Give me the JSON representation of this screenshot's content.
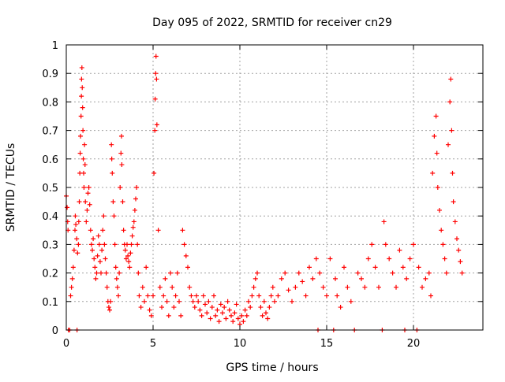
{
  "chart_data": {
    "type": "scatter",
    "title": "Day 095 of 2022, SRMTID for receiver cn29",
    "xlabel": "GPS time / hours",
    "ylabel": "SRMTID / TECUs",
    "xlim": [
      0,
      24
    ],
    "ylim": [
      0,
      1
    ],
    "x_ticks": [
      0,
      5,
      10,
      15,
      20
    ],
    "x_tick_labels": [
      "0",
      "5",
      "10",
      "15",
      "20"
    ],
    "y_ticks": [
      0,
      0.1,
      0.2,
      0.3,
      0.4,
      0.5,
      0.6,
      0.7,
      0.8,
      0.9,
      1
    ],
    "y_tick_labels": [
      "0",
      "0.1",
      "0.2",
      "0.3",
      "0.4",
      "0.5",
      "0.6",
      "0.7",
      "0.8",
      "0.9",
      "1"
    ],
    "grid": true,
    "marker": "+",
    "color": "#ff0000",
    "series": [
      {
        "name": "SRMTID",
        "points": [
          [
            0.0,
            0.47
          ],
          [
            0.05,
            0.43
          ],
          [
            0.08,
            0.38
          ],
          [
            0.1,
            0.35
          ],
          [
            0.12,
            0.0
          ],
          [
            0.2,
            0.0
          ],
          [
            0.25,
            0.12
          ],
          [
            0.3,
            0.15
          ],
          [
            0.35,
            0.18
          ],
          [
            0.4,
            0.22
          ],
          [
            0.45,
            0.28
          ],
          [
            0.5,
            0.35
          ],
          [
            0.52,
            0.4
          ],
          [
            0.55,
            0.37
          ],
          [
            0.6,
            0.32
          ],
          [
            0.62,
            0.0
          ],
          [
            0.65,
            0.27
          ],
          [
            0.7,
            0.3
          ],
          [
            0.72,
            0.38
          ],
          [
            0.75,
            0.45
          ],
          [
            0.78,
            0.55
          ],
          [
            0.8,
            0.62
          ],
          [
            0.82,
            0.68
          ],
          [
            0.85,
            0.75
          ],
          [
            0.87,
            0.82
          ],
          [
            0.88,
            0.88
          ],
          [
            0.9,
            0.92
          ],
          [
            0.92,
            0.85
          ],
          [
            0.94,
            0.78
          ],
          [
            0.96,
            0.7
          ],
          [
            0.98,
            0.6
          ],
          [
            1.0,
            0.55
          ],
          [
            1.02,
            0.5
          ],
          [
            1.05,
            0.65
          ],
          [
            1.08,
            0.58
          ],
          [
            1.1,
            0.45
          ],
          [
            1.15,
            0.38
          ],
          [
            1.2,
            0.42
          ],
          [
            1.25,
            0.48
          ],
          [
            1.3,
            0.5
          ],
          [
            1.35,
            0.44
          ],
          [
            1.4,
            0.35
          ],
          [
            1.45,
            0.3
          ],
          [
            1.5,
            0.28
          ],
          [
            1.55,
            0.32
          ],
          [
            1.6,
            0.25
          ],
          [
            1.65,
            0.22
          ],
          [
            1.7,
            0.18
          ],
          [
            1.75,
            0.2
          ],
          [
            1.8,
            0.26
          ],
          [
            1.85,
            0.33
          ],
          [
            1.9,
            0.3
          ],
          [
            1.95,
            0.24
          ],
          [
            2.0,
            0.2
          ],
          [
            2.05,
            0.28
          ],
          [
            2.1,
            0.35
          ],
          [
            2.15,
            0.4
          ],
          [
            2.2,
            0.3
          ],
          [
            2.25,
            0.25
          ],
          [
            2.3,
            0.2
          ],
          [
            2.35,
            0.15
          ],
          [
            2.4,
            0.1
          ],
          [
            2.45,
            0.08
          ],
          [
            2.5,
            0.07
          ],
          [
            2.55,
            0.1
          ],
          [
            2.6,
            0.65
          ],
          [
            2.62,
            0.6
          ],
          [
            2.65,
            0.55
          ],
          [
            2.7,
            0.45
          ],
          [
            2.75,
            0.4
          ],
          [
            2.8,
            0.3
          ],
          [
            2.85,
            0.22
          ],
          [
            2.9,
            0.18
          ],
          [
            2.95,
            0.15
          ],
          [
            3.0,
            0.12
          ],
          [
            3.05,
            0.2
          ],
          [
            3.1,
            0.5
          ],
          [
            3.15,
            0.62
          ],
          [
            3.18,
            0.68
          ],
          [
            3.2,
            0.58
          ],
          [
            3.25,
            0.45
          ],
          [
            3.3,
            0.35
          ],
          [
            3.35,
            0.3
          ],
          [
            3.4,
            0.28
          ],
          [
            3.45,
            0.25
          ],
          [
            3.5,
            0.3
          ],
          [
            3.55,
            0.26
          ],
          [
            3.6,
            0.24
          ],
          [
            3.65,
            0.22
          ],
          [
            3.7,
            0.27
          ],
          [
            3.75,
            0.3
          ],
          [
            3.8,
            0.33
          ],
          [
            3.85,
            0.36
          ],
          [
            3.9,
            0.38
          ],
          [
            3.95,
            0.42
          ],
          [
            4.0,
            0.46
          ],
          [
            4.05,
            0.5
          ],
          [
            4.1,
            0.3
          ],
          [
            4.15,
            0.2
          ],
          [
            4.2,
            0.12
          ],
          [
            4.3,
            0.08
          ],
          [
            4.4,
            0.15
          ],
          [
            4.5,
            0.1
          ],
          [
            4.6,
            0.22
          ],
          [
            4.7,
            0.12
          ],
          [
            4.8,
            0.07
          ],
          [
            4.9,
            0.05
          ],
          [
            5.0,
            0.12
          ],
          [
            5.05,
            0.55
          ],
          [
            5.1,
            0.7
          ],
          [
            5.12,
            0.81
          ],
          [
            5.15,
            0.9
          ],
          [
            5.17,
            0.96
          ],
          [
            5.2,
            0.88
          ],
          [
            5.22,
            0.72
          ],
          [
            5.3,
            0.35
          ],
          [
            5.4,
            0.15
          ],
          [
            5.5,
            0.08
          ],
          [
            5.6,
            0.12
          ],
          [
            5.7,
            0.18
          ],
          [
            5.8,
            0.1
          ],
          [
            5.9,
            0.05
          ],
          [
            6.0,
            0.2
          ],
          [
            6.1,
            0.15
          ],
          [
            6.2,
            0.08
          ],
          [
            6.3,
            0.12
          ],
          [
            6.4,
            0.2
          ],
          [
            6.5,
            0.1
          ],
          [
            6.6,
            0.05
          ],
          [
            6.7,
            0.35
          ],
          [
            6.8,
            0.3
          ],
          [
            6.9,
            0.26
          ],
          [
            7.0,
            0.22
          ],
          [
            7.1,
            0.15
          ],
          [
            7.2,
            0.12
          ],
          [
            7.3,
            0.1
          ],
          [
            7.4,
            0.08
          ],
          [
            7.5,
            0.12
          ],
          [
            7.6,
            0.1
          ],
          [
            7.7,
            0.07
          ],
          [
            7.8,
            0.05
          ],
          [
            7.9,
            0.12
          ],
          [
            8.0,
            0.09
          ],
          [
            8.1,
            0.06
          ],
          [
            8.2,
            0.1
          ],
          [
            8.3,
            0.04
          ],
          [
            8.4,
            0.08
          ],
          [
            8.5,
            0.12
          ],
          [
            8.6,
            0.05
          ],
          [
            8.7,
            0.07
          ],
          [
            8.8,
            0.03
          ],
          [
            8.9,
            0.09
          ],
          [
            9.0,
            0.06
          ],
          [
            9.1,
            0.08
          ],
          [
            9.2,
            0.04
          ],
          [
            9.3,
            0.1
          ],
          [
            9.4,
            0.07
          ],
          [
            9.5,
            0.05
          ],
          [
            9.6,
            0.03
          ],
          [
            9.7,
            0.06
          ],
          [
            9.8,
            0.09
          ],
          [
            9.9,
            0.04
          ],
          [
            10.0,
            0.02
          ],
          [
            10.1,
            0.05
          ],
          [
            10.2,
            0.03
          ],
          [
            10.3,
            0.07
          ],
          [
            10.4,
            0.05
          ],
          [
            10.5,
            0.1
          ],
          [
            10.6,
            0.08
          ],
          [
            10.7,
            0.12
          ],
          [
            10.8,
            0.15
          ],
          [
            10.9,
            0.18
          ],
          [
            11.0,
            0.2
          ],
          [
            11.1,
            0.12
          ],
          [
            11.2,
            0.08
          ],
          [
            11.3,
            0.05
          ],
          [
            11.4,
            0.1
          ],
          [
            11.5,
            0.06
          ],
          [
            11.6,
            0.04
          ],
          [
            11.7,
            0.08
          ],
          [
            11.8,
            0.12
          ],
          [
            11.9,
            0.15
          ],
          [
            12.0,
            0.1
          ],
          [
            12.2,
            0.12
          ],
          [
            12.4,
            0.18
          ],
          [
            12.6,
            0.2
          ],
          [
            12.8,
            0.14
          ],
          [
            13.0,
            0.1
          ],
          [
            13.2,
            0.15
          ],
          [
            13.4,
            0.2
          ],
          [
            13.6,
            0.17
          ],
          [
            13.8,
            0.12
          ],
          [
            14.0,
            0.22
          ],
          [
            14.2,
            0.18
          ],
          [
            14.4,
            0.25
          ],
          [
            14.5,
            0.0
          ],
          [
            14.6,
            0.2
          ],
          [
            14.8,
            0.15
          ],
          [
            15.0,
            0.12
          ],
          [
            15.2,
            0.25
          ],
          [
            15.4,
            0.0
          ],
          [
            15.5,
            0.18
          ],
          [
            15.6,
            0.12
          ],
          [
            15.8,
            0.08
          ],
          [
            16.0,
            0.22
          ],
          [
            16.2,
            0.15
          ],
          [
            16.4,
            0.1
          ],
          [
            16.6,
            0.0
          ],
          [
            16.8,
            0.2
          ],
          [
            17.0,
            0.18
          ],
          [
            17.2,
            0.15
          ],
          [
            17.4,
            0.25
          ],
          [
            17.6,
            0.3
          ],
          [
            17.8,
            0.22
          ],
          [
            18.0,
            0.15
          ],
          [
            18.2,
            0.0
          ],
          [
            18.3,
            0.38
          ],
          [
            18.4,
            0.3
          ],
          [
            18.6,
            0.25
          ],
          [
            18.8,
            0.2
          ],
          [
            19.0,
            0.15
          ],
          [
            19.2,
            0.28
          ],
          [
            19.4,
            0.22
          ],
          [
            19.5,
            0.0
          ],
          [
            19.6,
            0.18
          ],
          [
            19.8,
            0.25
          ],
          [
            20.0,
            0.3
          ],
          [
            20.2,
            0.0
          ],
          [
            20.3,
            0.22
          ],
          [
            20.5,
            0.15
          ],
          [
            20.7,
            0.18
          ],
          [
            20.9,
            0.2
          ],
          [
            21.0,
            0.12
          ],
          [
            21.1,
            0.55
          ],
          [
            21.2,
            0.68
          ],
          [
            21.3,
            0.75
          ],
          [
            21.35,
            0.62
          ],
          [
            21.4,
            0.5
          ],
          [
            21.5,
            0.42
          ],
          [
            21.6,
            0.35
          ],
          [
            21.7,
            0.3
          ],
          [
            21.8,
            0.25
          ],
          [
            21.9,
            0.2
          ],
          [
            22.0,
            0.65
          ],
          [
            22.1,
            0.8
          ],
          [
            22.15,
            0.88
          ],
          [
            22.2,
            0.7
          ],
          [
            22.25,
            0.55
          ],
          [
            22.3,
            0.45
          ],
          [
            22.4,
            0.38
          ],
          [
            22.5,
            0.32
          ],
          [
            22.6,
            0.28
          ],
          [
            22.7,
            0.24
          ],
          [
            22.8,
            0.2
          ]
        ]
      }
    ]
  }
}
